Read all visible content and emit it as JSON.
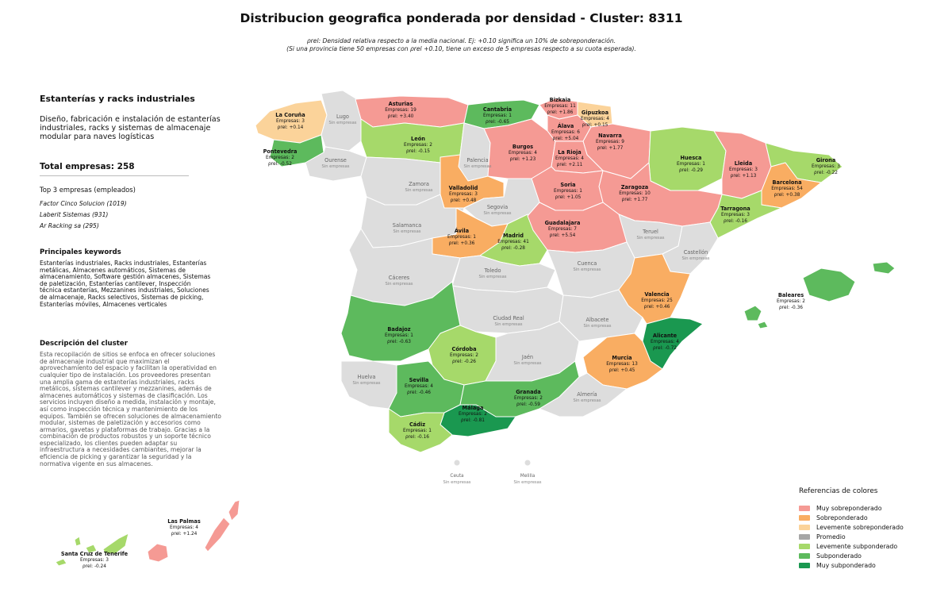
{
  "title": "Distribucion geografica ponderada por densidad - Cluster: 8311",
  "subtitle_line1": "ρrel: Densidad relativa respecto a la media nacional. Ej: +0.10 significa un 10% de sobreponderación.",
  "subtitle_line2": "(Si una provincia tiene 50 empresas con ρrel +0.10, tiene un exceso de 5 empresas respecto a su cuota esperada).",
  "sidebar": {
    "heading": "Estanterías y racks industriales",
    "short_desc": "Diseño, fabricación e instalación de estanterías industriales, racks y sistemas de almacenaje modular para naves logísticas",
    "total_label": "Total empresas: 258",
    "top3_heading": "Top 3 empresas (empleados)",
    "top3": [
      "Factor Cinco Solucion (1019)",
      "Laberit Sistemas (931)",
      "Ar Racking sa (295)"
    ],
    "keywords_heading": "Principales keywords",
    "keywords": "Estanterías industriales, Racks industriales, Estanterías metálicas, Almacenes automáticos, Sistemas de almacenamiento, Software gestión almacenes, Sistemas de paletización, Estanterías cantilever, Inspección técnica estanterías, Mezzanines industriales, Soluciones de almacenaje, Racks selectivos, Sistemas de picking, Estanterías móviles, Almacenes verticales",
    "description_heading": "Descripción del cluster",
    "description": "Esta recopilación de sitios se enfoca en ofrecer soluciones de almacenaje industrial que maximizan el aprovechamiento del espacio y facilitan la operatividad en cualquier tipo de instalación. Los proveedores presentan una amplia gama de estanterías industriales, racks metálicos, sistemas cantilever y mezzanines, además de almacenes automáticos y sistemas de clasificación. Los servicios incluyen diseño a medida, instalación y montaje, así como inspección técnica y mantenimiento de los equipos. También se ofrecen soluciones de almacenamiento modular, sistemas de paletización y accesorios como armarios, gavetas y plataformas de trabajo. Gracias a la combinación de productos robustos y un soporte técnico especializado, los clientes pueden adaptar su infraestructura a necesidades cambiantes, mejorar la eficiencia de picking y garantizar la seguridad y la normativa vigente en sus almacenes."
  },
  "colors": {
    "muy_sobre": "#f59a94",
    "sobre": "#f9ad62",
    "lev_sobre": "#fbd39a",
    "promedio": "#a6a6a6",
    "lev_sub": "#a6d96a",
    "sub": "#5dba5d",
    "muy_sub": "#1a9850",
    "none": "#dddddd",
    "border": "#ffffff"
  },
  "legend": {
    "heading": "Referencias de colores",
    "items": [
      {
        "label": "Muy sobreponderado",
        "color": "#f59a94"
      },
      {
        "label": "Sobreponderado",
        "color": "#f9ad62"
      },
      {
        "label": "Levemente sobreponderado",
        "color": "#fbd39a"
      },
      {
        "label": "Promedio",
        "color": "#a6a6a6"
      },
      {
        "label": "Levemente subponderado",
        "color": "#a6d96a"
      },
      {
        "label": "Subponderado",
        "color": "#5dba5d"
      },
      {
        "label": "Muy subponderado",
        "color": "#1a9850"
      }
    ]
  },
  "no_companies_text": "Sin empresas",
  "provinces": [
    {
      "name": "Asturias",
      "count": "Empresas: 19",
      "rho": "ρrel: +3.40",
      "color": "muy_sobre"
    },
    {
      "name": "Cantabria",
      "count": "Empresas: 1",
      "rho": "ρrel: -0.65",
      "color": "sub"
    },
    {
      "name": "Bizkaia",
      "count": "Empresas: 11",
      "rho": "ρrel: +1.86",
      "color": "muy_sobre"
    },
    {
      "name": "Gipuzkoa",
      "count": "Empresas: 4",
      "rho": "ρrel: +0.15",
      "color": "lev_sobre"
    },
    {
      "name": "Álava",
      "count": "Empresas: 6",
      "rho": "ρrel: +5.04",
      "color": "muy_sobre"
    },
    {
      "name": "Navarra",
      "count": "Empresas: 9",
      "rho": "ρrel: +1.77",
      "color": "muy_sobre"
    },
    {
      "name": "La Rioja",
      "count": "Empresas: 4",
      "rho": "ρrel: +2.11",
      "color": "muy_sobre"
    },
    {
      "name": "La Coruña",
      "count": "Empresas: 3",
      "rho": "ρrel: +0.14",
      "color": "lev_sobre"
    },
    {
      "name": "Pontevedra",
      "count": "Empresas: 2",
      "rho": "ρrel: -0.52",
      "color": "sub"
    },
    {
      "name": "León",
      "count": "Empresas: 2",
      "rho": "ρrel: -0.15",
      "color": "lev_sub"
    },
    {
      "name": "Burgos",
      "count": "Empresas: 4",
      "rho": "ρrel: +1.23",
      "color": "muy_sobre"
    },
    {
      "name": "Huesca",
      "count": "Empresas: 1",
      "rho": "ρrel: -0.29",
      "color": "lev_sub"
    },
    {
      "name": "Lleida",
      "count": "Empresas: 3",
      "rho": "ρrel: +1.13",
      "color": "muy_sobre"
    },
    {
      "name": "Girona",
      "count": "Empresas: 3",
      "rho": "ρrel: -0.22",
      "color": "lev_sub"
    },
    {
      "name": "Barcelona",
      "count": "Empresas: 54",
      "rho": "ρrel: +0.38",
      "color": "sobre"
    },
    {
      "name": "Tarragona",
      "count": "Empresas: 3",
      "rho": "ρrel: -0.16",
      "color": "lev_sub"
    },
    {
      "name": "Valladolid",
      "count": "Empresas: 3",
      "rho": "ρrel: +0.48",
      "color": "sobre"
    },
    {
      "name": "Soria",
      "count": "Empresas: 1",
      "rho": "ρrel: +1.05",
      "color": "muy_sobre"
    },
    {
      "name": "Zaragoza",
      "count": "Empresas: 10",
      "rho": "ρrel: +1.77",
      "color": "muy_sobre"
    },
    {
      "name": "Ávila",
      "count": "Empresas: 1",
      "rho": "ρrel: +0.36",
      "color": "sobre"
    },
    {
      "name": "Madrid",
      "count": "Empresas: 41",
      "rho": "ρrel: -0.28",
      "color": "lev_sub"
    },
    {
      "name": "Guadalajara",
      "count": "Empresas: 7",
      "rho": "ρrel: +5.54",
      "color": "muy_sobre"
    },
    {
      "name": "Valencia",
      "count": "Empresas: 25",
      "rho": "ρrel: +0.46",
      "color": "sobre"
    },
    {
      "name": "Baleares",
      "count": "Empresas: 2",
      "rho": "ρrel: -0.36",
      "color": "sub"
    },
    {
      "name": "Badajoz",
      "count": "Empresas: 1",
      "rho": "ρrel: -0.63",
      "color": "sub"
    },
    {
      "name": "Alicante",
      "count": "Empresas: 4",
      "rho": "ρrel: -0.72",
      "color": "muy_sub"
    },
    {
      "name": "Córdoba",
      "count": "Empresas: 2",
      "rho": "ρrel: -0.26",
      "color": "lev_sub"
    },
    {
      "name": "Murcia",
      "count": "Empresas: 13",
      "rho": "ρrel: +0.45",
      "color": "sobre"
    },
    {
      "name": "Sevilla",
      "count": "Empresas: 4",
      "rho": "ρrel: -0.46",
      "color": "sub"
    },
    {
      "name": "Granada",
      "count": "Empresas: 2",
      "rho": "ρrel: -0.59",
      "color": "sub"
    },
    {
      "name": "Málaga",
      "count": "Empresas: 2",
      "rho": "ρrel: -0.81",
      "color": "muy_sub"
    },
    {
      "name": "Cádiz",
      "count": "Empresas: 1",
      "rho": "ρrel: -0.16",
      "color": "lev_sub"
    },
    {
      "name": "Las Palmas",
      "count": "Empresas: 4",
      "rho": "ρrel: +1.24",
      "color": "muy_sobre"
    },
    {
      "name": "Santa Cruz de Tenerife",
      "count": "Empresas: 3",
      "rho": "ρrel: -0.24",
      "color": "lev_sub"
    }
  ],
  "empty_provinces": [
    "Lugo",
    "Ourense",
    "Palencia",
    "Zamora",
    "Segovia",
    "Salamanca",
    "Teruel",
    "Castellón",
    "Cuenca",
    "Toledo",
    "Cáceres",
    "Ciudad Real",
    "Albacete",
    "Jaén",
    "Huelva",
    "Almería",
    "Ceuta",
    "Melilla"
  ]
}
